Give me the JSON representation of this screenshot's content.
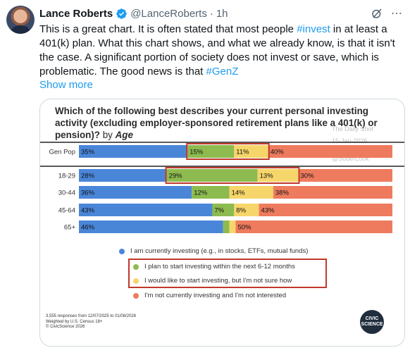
{
  "post": {
    "author_name": "Lance Roberts",
    "handle": "@LanceRoberts",
    "separator": "·",
    "time": "1h",
    "text_part1": "This is a great chart.  It is often stated that most people ",
    "tag_invest": "#invest",
    "text_part2": " in at least a 401(k) plan. What this chart shows, and what we already know, is that it isn't the case. A significant portion of society does not invest or save, which is problematic. The good news is that ",
    "tag_genz": "#GenZ",
    "show_more": "Show more",
    "more_icon": "⋯",
    "icons": {
      "verified": "verified-badge-icon",
      "grok": "grok-icon",
      "more": "more-icon"
    }
  },
  "chart_data": {
    "type": "bar",
    "stacked": true,
    "orientation": "horizontal",
    "title": "Which of the following best describes your current personal investing activity (excluding employer-sponsored retirement plans like a 401(k) or pension)?",
    "subtitle_prefix": "by",
    "subtitle_emph": "Age",
    "categories": [
      "Gen Pop",
      "18-29",
      "30-44",
      "45-64",
      "65+"
    ],
    "series": [
      {
        "name": "I am currently investing (e.g., in stocks, ETFs, mutual funds)",
        "color": "#4a86d8",
        "values": [
          35,
          28,
          36,
          43,
          46
        ],
        "labels": [
          "35%",
          "28%",
          "36%",
          "43%",
          "46%"
        ]
      },
      {
        "name": "I plan to start investing within the next 6-12 months",
        "color": "#8dbb4f",
        "values": [
          15,
          29,
          12,
          7,
          2
        ],
        "labels": [
          "15%",
          "29%",
          "12%",
          "7%",
          ""
        ]
      },
      {
        "name": "I would like to start investing, but I'm not sure how",
        "color": "#f6d56a",
        "values": [
          11,
          13,
          14,
          8,
          2
        ],
        "labels": [
          "11%",
          "13%",
          "14%",
          "8%",
          ""
        ]
      },
      {
        "name": "I'm not currently investing and I'm not interested",
        "color": "#ee7b5e",
        "values": [
          40,
          30,
          38,
          43,
          50
        ],
        "labels": [
          "40%",
          "30%",
          "38%",
          "43%",
          "50%"
        ]
      }
    ],
    "xlim": [
      0,
      100
    ],
    "footnote": [
      "3,555 responses from 12/07/2025 to 01/08/2026",
      "Weighted by U.S. Census 18+",
      "© CivicScience 2026"
    ],
    "watermark": [
      "The Daily Shot",
      "15-Jan-2026",
      "@SoberLook"
    ],
    "logo_text": [
      "CIVIC",
      "SCIENCE"
    ]
  }
}
